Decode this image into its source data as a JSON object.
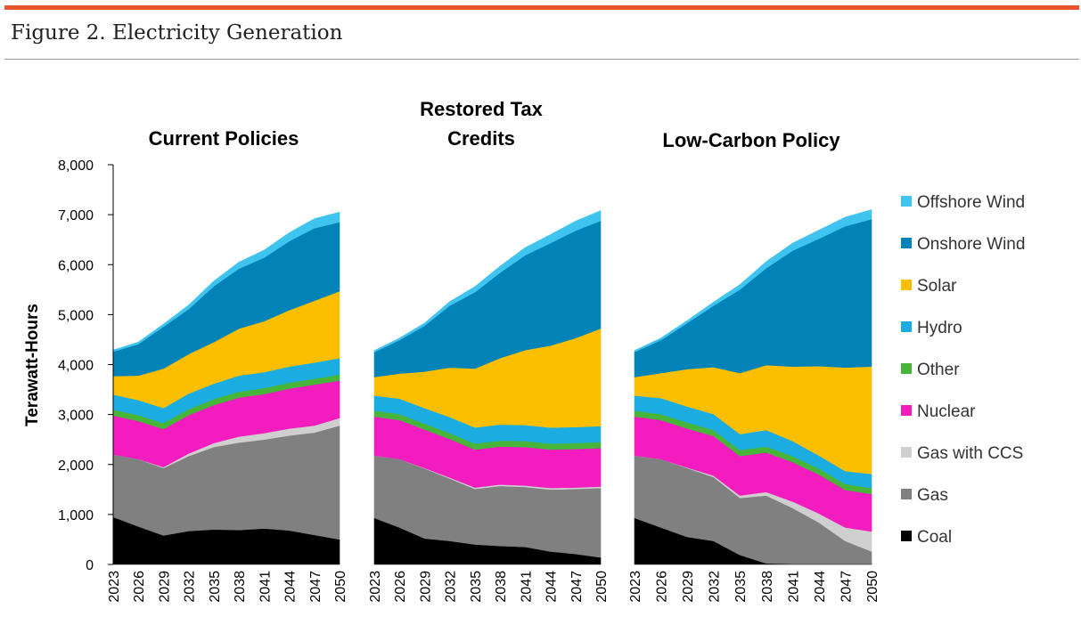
{
  "figure": {
    "title": "Figure 2. Electricity Generation"
  },
  "colors": {
    "accent_rule": "#e8542b",
    "Coal": "#000000",
    "Gas": "#808080",
    "Gas with CCS": "#cfcfcf",
    "Nuclear": "#f21cbf",
    "Other": "#47b43a",
    "Hydro": "#1bace2",
    "Solar": "#fcbf00",
    "Onshore Wind": "#0183b8",
    "Offshore Wind": "#3fc4f0"
  },
  "chart_data": {
    "type": "area",
    "stacked": true,
    "ylabel": "Terawatt-Hours",
    "ylim": [
      0,
      8000
    ],
    "y_ticks": [
      "0",
      "1,000",
      "2,000",
      "3,000",
      "4,000",
      "5,000",
      "6,000",
      "7,000",
      "8,000"
    ],
    "x": [
      2023,
      2026,
      2029,
      2032,
      2035,
      2038,
      2041,
      2044,
      2047,
      2050
    ],
    "x_labels": [
      "2023",
      "2026",
      "2029",
      "2032",
      "2035",
      "2038",
      "2041",
      "2044",
      "2047",
      "2050"
    ],
    "legend": [
      "Offshore Wind",
      "Onshore Wind",
      "Solar",
      "Hydro",
      "Other",
      "Nuclear",
      "Gas with CCS",
      "Gas",
      "Coal"
    ],
    "legend_position": "right",
    "panels": [
      {
        "title": [
          "Current Policies"
        ],
        "series": [
          {
            "name": "Coal",
            "values": [
              950,
              760,
              580,
              670,
              700,
              690,
              720,
              680,
              590,
              500
            ]
          },
          {
            "name": "Gas",
            "values": [
              1250,
              1350,
              1350,
              1500,
              1650,
              1750,
              1780,
              1900,
              2050,
              2280
            ]
          },
          {
            "name": "Gas with CCS",
            "values": [
              0,
              0,
              20,
              50,
              80,
              120,
              130,
              140,
              140,
              150
            ]
          },
          {
            "name": "Nuclear",
            "values": [
              780,
              760,
              760,
              770,
              760,
              780,
              780,
              800,
              820,
              750
            ]
          },
          {
            "name": "Other",
            "values": [
              120,
              120,
              120,
              120,
              120,
              120,
              120,
              120,
              120,
              120
            ]
          },
          {
            "name": "Hydro",
            "values": [
              300,
              300,
              300,
              310,
              310,
              320,
              320,
              320,
              320,
              330
            ]
          },
          {
            "name": "Solar",
            "values": [
              370,
              490,
              790,
              790,
              830,
              940,
              1020,
              1130,
              1240,
              1340
            ]
          },
          {
            "name": "Onshore Wind",
            "values": [
              490,
              630,
              840,
              900,
              1120,
              1200,
              1270,
              1380,
              1450,
              1380
            ]
          },
          {
            "name": "Offshore Wind",
            "values": [
              30,
              40,
              50,
              80,
              100,
              130,
              150,
              170,
              190,
              200
            ]
          }
        ]
      },
      {
        "title": [
          "Restored Tax",
          "Credits"
        ],
        "series": [
          {
            "name": "Coal",
            "values": [
              930,
              740,
              520,
              470,
              400,
              370,
              350,
              260,
              210,
              140
            ]
          },
          {
            "name": "Gas",
            "values": [
              1250,
              1370,
              1400,
              1250,
              1110,
              1200,
              1200,
              1240,
              1300,
              1390
            ]
          },
          {
            "name": "Gas with CCS",
            "values": [
              0,
              0,
              10,
              20,
              30,
              30,
              30,
              30,
              30,
              30
            ]
          },
          {
            "name": "Nuclear",
            "values": [
              780,
              780,
              770,
              770,
              760,
              760,
              770,
              770,
              770,
              770
            ]
          },
          {
            "name": "Other",
            "values": [
              120,
              120,
              120,
              120,
              120,
              120,
              120,
              120,
              120,
              120
            ]
          },
          {
            "name": "Hydro",
            "values": [
              300,
              310,
              310,
              320,
              320,
              320,
              320,
              320,
              320,
              320
            ]
          },
          {
            "name": "Solar",
            "values": [
              370,
              500,
              730,
              990,
              1180,
              1330,
              1500,
              1640,
              1780,
              1950
            ]
          },
          {
            "name": "Onshore Wind",
            "values": [
              500,
              670,
              920,
              1240,
              1530,
              1710,
              1900,
              2050,
              2150,
              2160
            ]
          },
          {
            "name": "Offshore Wind",
            "values": [
              30,
              40,
              50,
              80,
              110,
              130,
              150,
              170,
              190,
              200
            ]
          }
        ]
      },
      {
        "title": [
          "Low-Carbon Policy"
        ],
        "series": [
          {
            "name": "Coal",
            "values": [
              930,
              740,
              550,
              470,
              190,
              20,
              10,
              10,
              10,
              10
            ]
          },
          {
            "name": "Gas",
            "values": [
              1250,
              1370,
              1380,
              1280,
              1140,
              1360,
              1120,
              830,
              460,
              250
            ]
          },
          {
            "name": "Gas with CCS",
            "values": [
              0,
              0,
              10,
              30,
              50,
              70,
              130,
              180,
              270,
              400
            ]
          },
          {
            "name": "Nuclear",
            "values": [
              780,
              780,
              780,
              790,
              790,
              790,
              790,
              780,
              750,
              750
            ]
          },
          {
            "name": "Other",
            "values": [
              120,
              120,
              120,
              120,
              120,
              120,
              120,
              120,
              120,
              120
            ]
          },
          {
            "name": "Hydro",
            "values": [
              300,
              320,
              320,
              320,
              320,
              330,
              300,
              260,
              260,
              280
            ]
          },
          {
            "name": "Solar",
            "values": [
              370,
              500,
              750,
              940,
              1220,
              1300,
              1490,
              1790,
              2070,
              2150
            ]
          },
          {
            "name": "Onshore Wind",
            "values": [
              500,
              660,
              920,
              1230,
              1670,
              1940,
              2320,
              2550,
              2830,
              2950
            ]
          },
          {
            "name": "Offshore Wind",
            "values": [
              30,
              40,
              50,
              70,
              100,
              130,
              150,
              170,
              180,
              190
            ]
          }
        ]
      }
    ]
  }
}
